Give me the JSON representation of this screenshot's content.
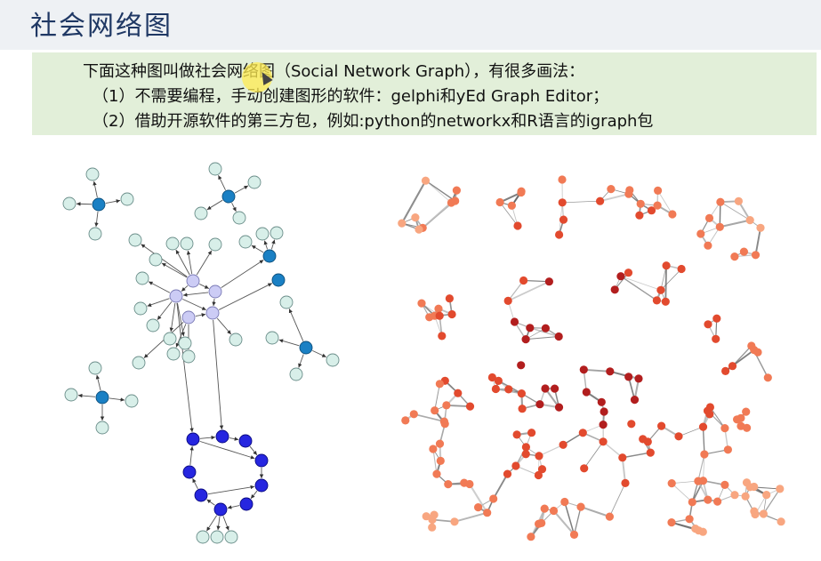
{
  "title": "社会网络图",
  "description": {
    "line1": "下面这种图叫做社会网络图（Social Network Graph），有很多画法：",
    "line2": "（1）不需要编程，手动创建图形的软件：gelphi和yEd Graph Editor；",
    "line3": "（2）借助开源软件的第三方包，例如:python的networkx和R语言的igraph包"
  },
  "colors": {
    "hub_blue": "#1a80c4",
    "leaf_mint": "#d8efe9",
    "lavender": "#ccccf5",
    "ring_blue": "#2626e0",
    "edge_gray": "#777777",
    "red_dark": "#b21e1e",
    "red_mid": "#e24a2e",
    "orange_light": "#f8a680"
  }
}
